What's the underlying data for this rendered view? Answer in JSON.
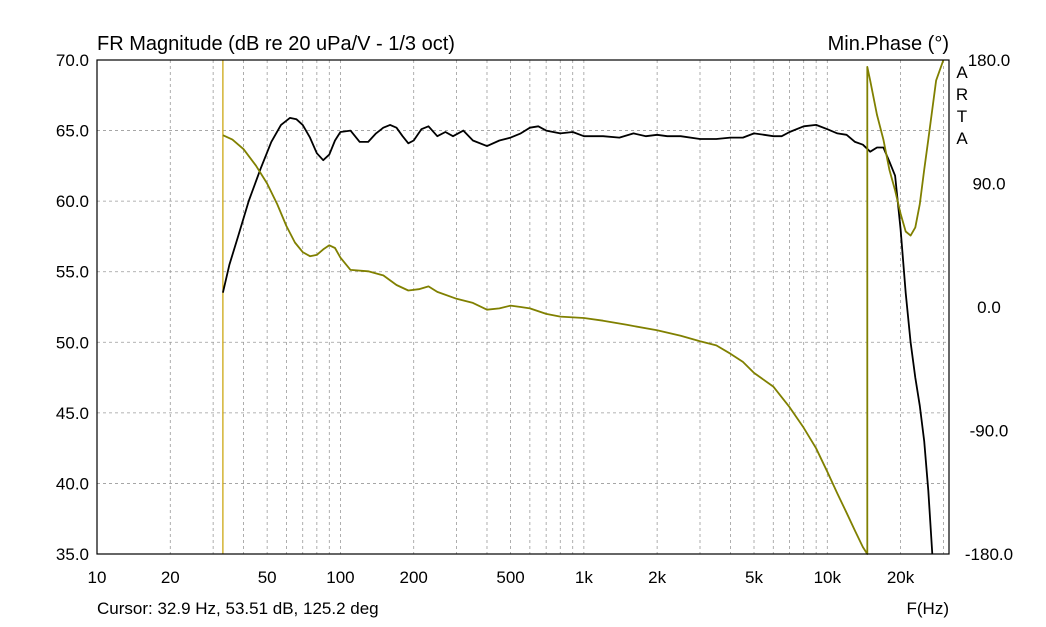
{
  "chart_data": {
    "type": "line",
    "title": "FR Magnitude (dB re 20 uPa/V - 1/3 oct)",
    "right_title": "Min.Phase (°)",
    "brand_letters": [
      "A",
      "R",
      "T",
      "A"
    ],
    "xlabel": "F(Hz)",
    "x_scale": "log",
    "xlim": [
      10,
      31622
    ],
    "ylim": [
      35,
      70
    ],
    "y2lim": [
      -180,
      180
    ],
    "x_ticks": [
      {
        "value": 10,
        "label": "10"
      },
      {
        "value": 20,
        "label": "20"
      },
      {
        "value": 50,
        "label": "50"
      },
      {
        "value": 100,
        "label": "100"
      },
      {
        "value": 200,
        "label": "200"
      },
      {
        "value": 500,
        "label": "500"
      },
      {
        "value": 1000,
        "label": "1k"
      },
      {
        "value": 2000,
        "label": "2k"
      },
      {
        "value": 5000,
        "label": "5k"
      },
      {
        "value": 10000,
        "label": "10k"
      },
      {
        "value": 20000,
        "label": "20k"
      }
    ],
    "y_ticks": [
      {
        "value": 70,
        "label": "70.0"
      },
      {
        "value": 65,
        "label": "65.0"
      },
      {
        "value": 60,
        "label": "60.0"
      },
      {
        "value": 55,
        "label": "55.0"
      },
      {
        "value": 50,
        "label": "50.0"
      },
      {
        "value": 45,
        "label": "45.0"
      },
      {
        "value": 40,
        "label": "40.0"
      },
      {
        "value": 35,
        "label": "35.0"
      }
    ],
    "y2_ticks": [
      {
        "value": 180,
        "label": "180.0"
      },
      {
        "value": 90,
        "label": "90.0"
      },
      {
        "value": 0,
        "label": "0.0"
      },
      {
        "value": -90,
        "label": "-90.0"
      },
      {
        "value": -180,
        "label": "-180.0"
      }
    ],
    "grid": true,
    "cursor": {
      "freq": 32.9,
      "label": "Cursor: 32.9 Hz, 53.51 dB, 125.2 deg"
    },
    "series": [
      {
        "name": "FR Magnitude",
        "axis": "left",
        "color": "#000000",
        "points": [
          [
            32.9,
            53.51
          ],
          [
            35,
            55.5
          ],
          [
            38,
            57.5
          ],
          [
            42,
            60.0
          ],
          [
            47,
            62.3
          ],
          [
            52,
            64.2
          ],
          [
            57,
            65.4
          ],
          [
            62,
            65.9
          ],
          [
            66,
            65.8
          ],
          [
            70,
            65.4
          ],
          [
            75,
            64.5
          ],
          [
            80,
            63.4
          ],
          [
            85,
            62.9
          ],
          [
            90,
            63.3
          ],
          [
            95,
            64.3
          ],
          [
            100,
            64.9
          ],
          [
            110,
            65.0
          ],
          [
            120,
            64.2
          ],
          [
            130,
            64.2
          ],
          [
            140,
            64.8
          ],
          [
            150,
            65.2
          ],
          [
            160,
            65.4
          ],
          [
            170,
            65.2
          ],
          [
            180,
            64.6
          ],
          [
            190,
            64.1
          ],
          [
            200,
            64.3
          ],
          [
            215,
            65.1
          ],
          [
            230,
            65.3
          ],
          [
            250,
            64.6
          ],
          [
            270,
            64.9
          ],
          [
            290,
            64.6
          ],
          [
            320,
            65.0
          ],
          [
            350,
            64.3
          ],
          [
            400,
            63.9
          ],
          [
            450,
            64.3
          ],
          [
            500,
            64.5
          ],
          [
            550,
            64.8
          ],
          [
            600,
            65.2
          ],
          [
            650,
            65.3
          ],
          [
            700,
            65.0
          ],
          [
            800,
            64.8
          ],
          [
            900,
            64.9
          ],
          [
            1000,
            64.6
          ],
          [
            1200,
            64.6
          ],
          [
            1400,
            64.5
          ],
          [
            1600,
            64.8
          ],
          [
            1800,
            64.6
          ],
          [
            2000,
            64.7
          ],
          [
            2200,
            64.6
          ],
          [
            2500,
            64.6
          ],
          [
            3000,
            64.4
          ],
          [
            3500,
            64.4
          ],
          [
            4000,
            64.5
          ],
          [
            4500,
            64.5
          ],
          [
            5000,
            64.8
          ],
          [
            5500,
            64.7
          ],
          [
            6000,
            64.6
          ],
          [
            6500,
            64.6
          ],
          [
            7000,
            64.9
          ],
          [
            8000,
            65.3
          ],
          [
            9000,
            65.4
          ],
          [
            10000,
            65.1
          ],
          [
            11000,
            64.8
          ],
          [
            12000,
            64.7
          ],
          [
            13000,
            64.2
          ],
          [
            14000,
            64.0
          ],
          [
            15000,
            63.5
          ],
          [
            16000,
            63.8
          ],
          [
            17000,
            63.8
          ],
          [
            18000,
            62.8
          ],
          [
            19000,
            61.8
          ],
          [
            20000,
            58.0
          ],
          [
            21000,
            53.5
          ],
          [
            22000,
            50.0
          ],
          [
            23000,
            47.5
          ],
          [
            24000,
            45.5
          ],
          [
            25000,
            43.0
          ],
          [
            26000,
            39.5
          ],
          [
            27000,
            35.0
          ]
        ]
      },
      {
        "name": "Min.Phase",
        "axis": "right",
        "color": "#808000",
        "points": [
          [
            32.9,
            125.2
          ],
          [
            36,
            122
          ],
          [
            40,
            115
          ],
          [
            45,
            103
          ],
          [
            50,
            90
          ],
          [
            55,
            75
          ],
          [
            60,
            59
          ],
          [
            65,
            47
          ],
          [
            70,
            40
          ],
          [
            75,
            37
          ],
          [
            80,
            38
          ],
          [
            85,
            42
          ],
          [
            90,
            45
          ],
          [
            95,
            43
          ],
          [
            100,
            36
          ],
          [
            110,
            27
          ],
          [
            130,
            26
          ],
          [
            150,
            23
          ],
          [
            170,
            16
          ],
          [
            190,
            12
          ],
          [
            210,
            13
          ],
          [
            230,
            15
          ],
          [
            250,
            11
          ],
          [
            300,
            6
          ],
          [
            350,
            3
          ],
          [
            400,
            -2
          ],
          [
            450,
            -1
          ],
          [
            500,
            1
          ],
          [
            550,
            0
          ],
          [
            600,
            -1
          ],
          [
            700,
            -5
          ],
          [
            800,
            -7
          ],
          [
            1000,
            -8
          ],
          [
            1200,
            -10
          ],
          [
            1500,
            -13
          ],
          [
            2000,
            -17
          ],
          [
            2500,
            -21
          ],
          [
            3000,
            -25
          ],
          [
            3500,
            -28
          ],
          [
            4000,
            -34
          ],
          [
            4500,
            -40
          ],
          [
            5000,
            -48
          ],
          [
            6000,
            -58
          ],
          [
            7000,
            -73
          ],
          [
            8000,
            -88
          ],
          [
            9000,
            -103
          ],
          [
            10000,
            -120
          ],
          [
            11000,
            -136
          ],
          [
            12000,
            -150
          ],
          [
            13000,
            -163
          ],
          [
            14000,
            -175
          ],
          [
            14600,
            -180
          ],
          [
            14600,
            175
          ],
          [
            15000,
            165
          ],
          [
            16000,
            140
          ],
          [
            17000,
            122
          ],
          [
            18000,
            100
          ],
          [
            19000,
            85
          ],
          [
            20000,
            68
          ],
          [
            21000,
            55
          ],
          [
            22000,
            52
          ],
          [
            23000,
            58
          ],
          [
            24000,
            75
          ],
          [
            25000,
            100
          ],
          [
            26000,
            122
          ],
          [
            28000,
            165
          ],
          [
            30000,
            180
          ]
        ]
      }
    ]
  }
}
